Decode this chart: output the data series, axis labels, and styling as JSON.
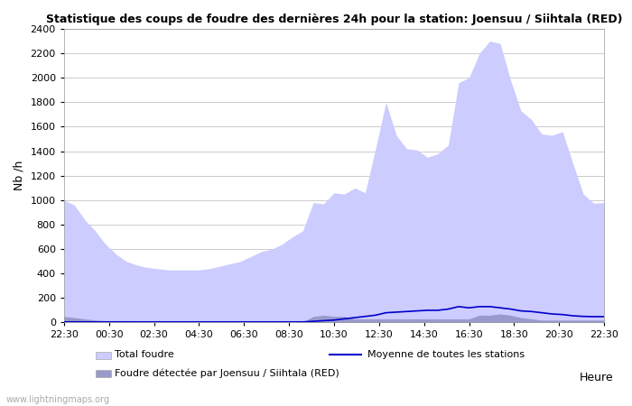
{
  "title": "Statistique des coups de foudre des dernières 24h pour la station: Joensuu / Siihtala (RED)",
  "xlabel": "Heure",
  "ylabel": "Nb /h",
  "xlim": [
    0,
    48
  ],
  "ylim": [
    0,
    2400
  ],
  "yticks": [
    0,
    200,
    400,
    600,
    800,
    1000,
    1200,
    1400,
    1600,
    1800,
    2000,
    2200,
    2400
  ],
  "xtick_labels": [
    "22:30",
    "00:30",
    "02:30",
    "04:30",
    "06:30",
    "08:30",
    "10:30",
    "12:30",
    "14:30",
    "16:30",
    "18:30",
    "20:30",
    "22:30"
  ],
  "xtick_positions": [
    0,
    4,
    8,
    12,
    16,
    20,
    24,
    28,
    32,
    36,
    40,
    44,
    48
  ],
  "color_total": "#ccccff",
  "color_detected": "#9999cc",
  "color_mean": "#0000cc",
  "bg_color": "#ffffff",
  "grid_color": "#cccccc",
  "watermark": "www.lightningmaps.org",
  "legend_total": "Total foudre",
  "legend_mean": "Moyenne de toutes les stations",
  "legend_detected": "Foudre détectée par Joensuu / Siihtala (RED)",
  "total_foudre": [
    1000,
    960,
    840,
    750,
    640,
    560,
    500,
    470,
    450,
    440,
    430,
    430,
    430,
    430,
    440,
    460,
    480,
    500,
    540,
    580,
    600,
    640,
    700,
    750,
    980,
    970,
    1060,
    1050,
    1100,
    1060,
    1420,
    1800,
    1530,
    1420,
    1410,
    1350,
    1380,
    1450,
    1960,
    2000,
    2200,
    2300,
    2280,
    1980,
    1730,
    1660,
    1540,
    1530,
    1560,
    1300,
    1050,
    975,
    980
  ],
  "detected_foudre": [
    50,
    40,
    30,
    20,
    15,
    10,
    8,
    6,
    5,
    5,
    5,
    5,
    5,
    5,
    5,
    5,
    5,
    5,
    5,
    5,
    5,
    5,
    5,
    5,
    50,
    60,
    50,
    50,
    30,
    30,
    30,
    30,
    30,
    30,
    30,
    30,
    30,
    30,
    30,
    30,
    60,
    60,
    70,
    60,
    40,
    30,
    20,
    20,
    20,
    20,
    20,
    20,
    20
  ],
  "mean_foudre": [
    5,
    5,
    5,
    5,
    5,
    5,
    5,
    5,
    5,
    5,
    5,
    5,
    5,
    5,
    5,
    5,
    5,
    5,
    5,
    5,
    5,
    5,
    5,
    5,
    10,
    15,
    20,
    30,
    40,
    50,
    60,
    80,
    85,
    90,
    95,
    100,
    100,
    110,
    130,
    120,
    130,
    130,
    120,
    110,
    95,
    90,
    80,
    70,
    65,
    55,
    50,
    48,
    48
  ]
}
